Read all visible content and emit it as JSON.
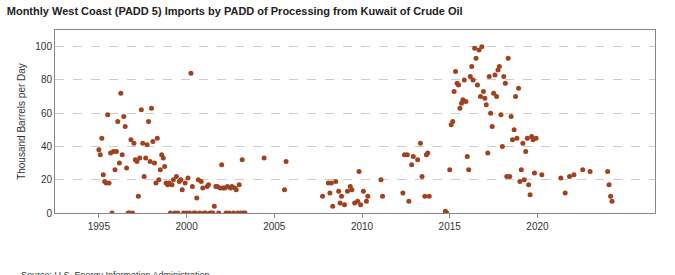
{
  "chart_data": {
    "type": "scatter",
    "title": "Monthly West Coast (PADD 5) Imports by PADD of Processing from Kuwait of Crude Oil",
    "y_label": "Thousand Barrels per Day",
    "annotations": [
      "Source: U.S. Energy Information Administration"
    ],
    "color": "#a0411f",
    "marker": "circle",
    "grid": true,
    "xlim": [
      1992.5,
      2026.7
    ],
    "xticks": [
      1995,
      2000,
      2005,
      2010,
      2015,
      2020
    ],
    "ylim": [
      0,
      110
    ],
    "yticks": [
      0,
      20,
      40,
      60,
      80,
      100
    ],
    "x": [
      1995.0,
      1995.08,
      1995.17,
      1995.25,
      1995.33,
      1995.42,
      1995.5,
      1995.58,
      1995.67,
      1995.75,
      1995.83,
      1995.92,
      1996.0,
      1996.08,
      1996.17,
      1996.25,
      1996.33,
      1996.42,
      1996.5,
      1996.58,
      1996.67,
      1996.75,
      1996.83,
      1996.92,
      1997.0,
      1997.08,
      1997.17,
      1997.25,
      1997.33,
      1997.42,
      1997.5,
      1997.58,
      1997.67,
      1997.75,
      1997.83,
      1997.92,
      1998.0,
      1998.08,
      1998.17,
      1998.25,
      1998.33,
      1998.42,
      1998.5,
      1998.58,
      1998.67,
      1998.75,
      1998.83,
      1998.92,
      1999.0,
      1999.08,
      1999.17,
      1999.25,
      1999.33,
      1999.42,
      1999.5,
      1999.58,
      1999.67,
      1999.75,
      1999.83,
      1999.92,
      2000.0,
      2000.08,
      2000.17,
      2000.25,
      2000.33,
      2000.42,
      2000.5,
      2000.58,
      2000.67,
      2000.75,
      2000.83,
      2000.92,
      2001.0,
      2001.08,
      2001.17,
      2001.25,
      2001.33,
      2001.42,
      2001.5,
      2001.58,
      2001.67,
      2001.75,
      2001.83,
      2001.92,
      2002.0,
      2002.08,
      2002.17,
      2002.25,
      2002.33,
      2002.42,
      2002.5,
      2002.58,
      2002.67,
      2002.75,
      2002.83,
      2002.92,
      2003.0,
      2003.08,
      2003.17,
      2003.25,
      2003.33,
      2004.42,
      2005.58,
      2005.67,
      2007.75,
      2008.08,
      2008.17,
      2008.25,
      2008.33,
      2008.5,
      2008.67,
      2008.75,
      2008.83,
      2009.0,
      2009.17,
      2009.33,
      2009.42,
      2009.58,
      2009.75,
      2009.83,
      2009.92,
      2010.08,
      2010.25,
      2010.33,
      2011.08,
      2011.17,
      2012.33,
      2012.42,
      2012.58,
      2012.67,
      2012.83,
      2012.92,
      2013.17,
      2013.33,
      2013.42,
      2013.58,
      2013.67,
      2013.75,
      2013.83,
      2014.75,
      2014.83,
      2015.0,
      2015.08,
      2015.17,
      2015.25,
      2015.33,
      2015.42,
      2015.5,
      2015.58,
      2015.67,
      2015.75,
      2015.83,
      2015.92,
      2016.0,
      2016.08,
      2016.17,
      2016.25,
      2016.33,
      2016.42,
      2016.5,
      2016.58,
      2016.67,
      2016.75,
      2016.83,
      2016.92,
      2017.0,
      2017.08,
      2017.17,
      2017.25,
      2017.33,
      2017.42,
      2017.5,
      2017.58,
      2017.67,
      2017.75,
      2017.83,
      2017.92,
      2018.0,
      2018.08,
      2018.17,
      2018.25,
      2018.33,
      2018.42,
      2018.5,
      2018.58,
      2018.67,
      2018.75,
      2018.83,
      2018.92,
      2019.0,
      2019.08,
      2019.17,
      2019.25,
      2019.33,
      2019.42,
      2019.5,
      2019.58,
      2019.67,
      2019.75,
      2019.83,
      2019.92,
      2020.25,
      2021.33,
      2021.58,
      2021.83,
      2022.08,
      2022.58,
      2023.0,
      2024.0,
      2024.08,
      2024.17,
      2024.25
    ],
    "values": [
      38,
      35,
      45,
      23,
      19,
      18,
      59,
      18,
      36,
      0,
      37,
      26,
      37,
      55,
      30,
      72,
      35,
      58,
      52,
      27,
      0,
      0,
      44,
      0,
      42,
      32,
      31,
      10,
      33,
      62,
      42,
      22,
      33,
      41,
      55,
      31,
      63,
      43,
      30,
      18,
      45,
      20,
      26,
      35,
      33,
      28,
      18,
      17,
      18,
      0,
      17,
      20,
      0,
      22,
      0,
      19,
      20,
      14,
      0,
      18,
      0,
      21,
      0,
      84,
      16,
      0,
      0,
      9,
      20,
      0,
      19,
      15,
      0,
      0,
      16,
      17,
      0,
      0,
      0,
      4,
      16,
      16,
      0,
      15,
      29,
      15,
      15,
      0,
      16,
      0,
      15,
      16,
      0,
      15,
      14,
      0,
      17,
      0,
      32,
      0,
      0,
      33,
      14,
      31,
      10,
      18,
      12,
      18,
      4,
      19,
      13,
      6,
      10,
      5,
      13,
      16,
      14,
      6,
      7,
      25,
      5,
      13,
      7,
      10,
      20,
      10,
      12,
      35,
      35,
      7,
      29,
      34,
      32,
      42,
      22,
      10,
      35,
      36,
      10,
      1,
      0,
      26,
      53,
      55,
      73,
      85,
      78,
      77,
      63,
      66,
      68,
      80,
      67,
      34,
      26,
      82,
      88,
      80,
      99,
      93,
      77,
      98,
      70,
      100,
      73,
      69,
      65,
      36,
      82,
      60,
      52,
      72,
      83,
      70,
      86,
      88,
      59,
      40,
      82,
      78,
      22,
      93,
      22,
      58,
      44,
      50,
      70,
      45,
      75,
      19,
      26,
      42,
      20,
      37,
      45,
      17,
      11,
      46,
      44,
      24,
      45,
      23,
      21,
      12,
      22,
      23,
      26,
      25,
      25,
      17,
      10,
      7
    ]
  }
}
